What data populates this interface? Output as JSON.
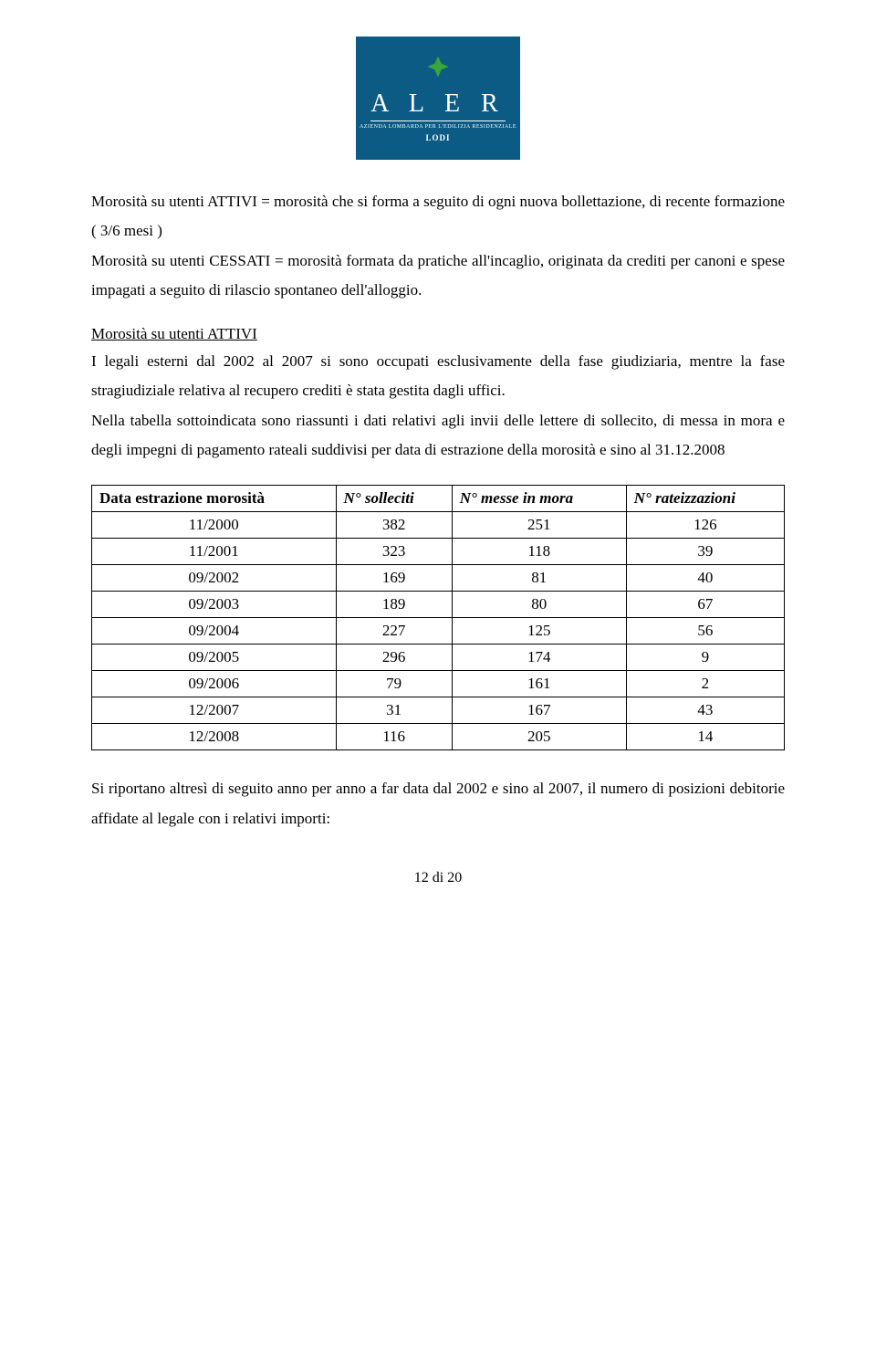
{
  "logo": {
    "title": "A L E R",
    "subtitle": "AZIENDA LOMBARDA PER L'EDILIZIA RESIDENZIALE",
    "city": "LODI",
    "bg_color": "#0b5b84",
    "icon_color": "#3aa53a"
  },
  "para1": "Morosità su utenti ATTIVI = morosità che si forma a seguito di ogni nuova bollettazione, di recente formazione ( 3/6 mesi )",
  "para2": "Morosità su utenti CESSATI = morosità formata da pratiche all'incaglio, originata da crediti per canoni e spese impagati a seguito di rilascio spontaneo dell'alloggio.",
  "section_title": "Morosità su utenti ATTIVI",
  "para3": "I legali esterni dal 2002 al 2007 si sono occupati esclusivamente della fase giudiziaria, mentre la fase stragiudiziale relativa al recupero crediti è stata gestita dagli uffici.",
  "para4": "Nella tabella sottoindicata sono riassunti i dati relativi agli invii delle lettere di sollecito, di messa in mora e degli impegni di pagamento rateali suddivisi per data di estrazione della morosità e sino al 31.12.2008",
  "table": {
    "columns": [
      "Data estrazione morosità",
      "N° solleciti",
      "N° messe in mora",
      "N° rateizzazioni"
    ],
    "col_header_styles": [
      "bold",
      "bold-italic",
      "bold-italic",
      "bold-italic"
    ],
    "rows": [
      [
        "11/2000",
        "382",
        "251",
        "126"
      ],
      [
        "11/2001",
        "323",
        "118",
        "39"
      ],
      [
        "09/2002",
        "169",
        "81",
        "40"
      ],
      [
        "09/2003",
        "189",
        "80",
        "67"
      ],
      [
        "09/2004",
        "227",
        "125",
        "56"
      ],
      [
        "09/2005",
        "296",
        "174",
        "9"
      ],
      [
        "09/2006",
        "79",
        "161",
        "2"
      ],
      [
        "12/2007",
        "31",
        "167",
        "43"
      ],
      [
        "12/2008",
        "116",
        "205",
        "14"
      ]
    ]
  },
  "para5": "Si riportano altresì di seguito anno per anno a far data dal 2002 e sino al 2007, il numero di posizioni debitorie affidate al legale con i relativi importi:",
  "page_number": "12 di 20"
}
